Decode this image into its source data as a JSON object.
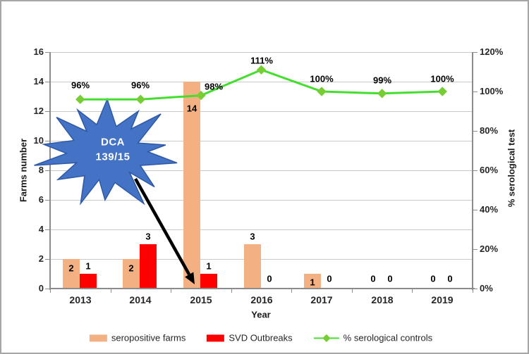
{
  "chart_data": {
    "type": "bar+line combo",
    "categories": [
      "2013",
      "2014",
      "2015",
      "2016",
      "2017",
      "2018",
      "2019"
    ],
    "series": [
      {
        "name": "seropositive farms",
        "type": "bar",
        "axis": "left",
        "color": "#F3B183",
        "values": [
          2,
          2,
          14,
          3,
          1,
          0,
          0
        ],
        "point_labels": [
          "2",
          "2",
          "14",
          "3",
          "1",
          "0",
          "0"
        ],
        "label_placement": [
          "inside-top",
          "inside-top",
          "inside-deep",
          "above",
          "inside-bottom",
          "zero",
          "zero"
        ]
      },
      {
        "name": "SVD Outbreaks",
        "type": "bar",
        "axis": "left",
        "color": "#FE0000",
        "values": [
          1,
          3,
          1,
          0,
          0,
          0,
          0
        ],
        "point_labels": [
          "1",
          "3",
          "1",
          "0",
          "0",
          "0",
          "0"
        ],
        "label_placement": [
          "above",
          "above",
          "above",
          "zero",
          "zero",
          "zero",
          "zero"
        ]
      },
      {
        "name": "% serological controls",
        "type": "line",
        "axis": "right",
        "color": "#44DF2E",
        "marker_color": "#76CE34",
        "values": [
          96,
          96,
          98,
          111,
          100,
          99,
          100
        ],
        "point_labels": [
          "96%",
          "96%",
          "98%",
          "111%",
          "100%",
          "99%",
          "100%"
        ],
        "label_offsets": [
          [
            0,
            -20
          ],
          [
            0,
            -20
          ],
          [
            18,
            -13
          ],
          [
            0,
            -13
          ],
          [
            0,
            -18
          ],
          [
            0,
            -19
          ],
          [
            0,
            -18
          ]
        ]
      }
    ],
    "left_axis": {
      "title": "Farms number",
      "min": 0,
      "max": 16,
      "step": 2,
      "ticks": [
        "0",
        "2",
        "4",
        "6",
        "8",
        "10",
        "12",
        "14",
        "16"
      ]
    },
    "right_axis": {
      "title": "% serological test",
      "min": 0,
      "max": 120,
      "step": 20,
      "ticks": [
        "0%",
        "20%",
        "40%",
        "60%",
        "80%",
        "100%",
        "120%"
      ]
    },
    "x_axis": {
      "title": "Year"
    },
    "legend_position": "bottom",
    "grid": true,
    "annotation": {
      "shape": "starburst",
      "lines": [
        "DCA",
        "139/15"
      ],
      "fill": "#4472C4",
      "stroke": "#2E59A8",
      "text_color": "#FFFFFF",
      "arrow_color": "#000000",
      "arrow_points_to": "2015"
    }
  },
  "colors": {
    "grid": "#C9C9C9",
    "axis": "#8C8C8C",
    "tick_text": "#262626",
    "frame_border": "#A6A6A6",
    "background": "#FFFFFF"
  }
}
